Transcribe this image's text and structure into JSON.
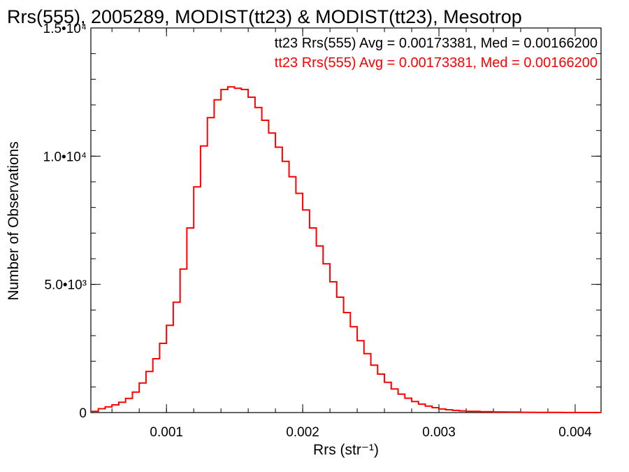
{
  "colors": {
    "background": "#ffffff",
    "axes": "#000000",
    "series": "#ff0000",
    "legend_first": "#000000",
    "legend_second": "#ff0000"
  },
  "chart_data": {
    "type": "line",
    "title": "Rrs(555), 2005289, MODIST(tt23) & MODIST(tt23), Mesotrop",
    "xlabel": "Rrs (str⁻¹)",
    "ylabel": "Number of Observations",
    "xlim": [
      0.000445,
      0.00419
    ],
    "ylim": [
      0,
      15000
    ],
    "x_ticks": [
      {
        "value": 0.001,
        "label": "0.001"
      },
      {
        "value": 0.002,
        "label": "0.002"
      },
      {
        "value": 0.003,
        "label": "0.003"
      },
      {
        "value": 0.004,
        "label": "0.004"
      }
    ],
    "y_ticks": [
      {
        "value": 0,
        "label": "0"
      },
      {
        "value": 5000,
        "label": "5.0•10³"
      },
      {
        "value": 10000,
        "label": "1.0•10⁴"
      },
      {
        "value": 15000,
        "label": "1.5•10⁴"
      }
    ],
    "legend": [
      "tt23 Rrs(555) Avg = 0.00173381, Med = 0.00166200",
      "tt23 Rrs(555) Avg = 0.00173381, Med = 0.00166200"
    ],
    "legend_placement": "top-right",
    "grid": false,
    "series": [
      {
        "step": true,
        "x": [
          0.00045,
          0.0005,
          0.00055,
          0.0006,
          0.00065,
          0.0007,
          0.00075,
          0.0008,
          0.00085,
          0.0009,
          0.00095,
          0.001,
          0.00105,
          0.0011,
          0.00115,
          0.0012,
          0.00125,
          0.0013,
          0.00135,
          0.0014,
          0.00145,
          0.0015,
          0.00155,
          0.0016,
          0.00165,
          0.0017,
          0.00175,
          0.0018,
          0.00185,
          0.0019,
          0.00195,
          0.002,
          0.00205,
          0.0021,
          0.00215,
          0.0022,
          0.00225,
          0.0023,
          0.00235,
          0.0024,
          0.00245,
          0.0025,
          0.00255,
          0.0026,
          0.00265,
          0.0027,
          0.00275,
          0.0028,
          0.00285,
          0.0029,
          0.00295,
          0.003,
          0.00305,
          0.0031,
          0.00315,
          0.0032,
          0.0033,
          0.0034,
          0.0035,
          0.0036,
          0.0037,
          0.0038,
          0.0039,
          0.004,
          0.0041,
          0.00419
        ],
        "y": [
          50,
          150,
          220,
          300,
          400,
          550,
          800,
          1150,
          1600,
          2100,
          2700,
          3400,
          4300,
          5600,
          7200,
          8800,
          10400,
          11500,
          12200,
          12600,
          12700,
          12650,
          12600,
          12300,
          11900,
          11400,
          10900,
          10350,
          9800,
          9200,
          8550,
          7900,
          7200,
          6500,
          5800,
          5100,
          4500,
          3900,
          3350,
          2800,
          2300,
          1850,
          1500,
          1180,
          920,
          720,
          560,
          430,
          330,
          250,
          190,
          140,
          110,
          85,
          65,
          50,
          35,
          25,
          18,
          12,
          8,
          6,
          4,
          3,
          2,
          2
        ]
      }
    ]
  }
}
